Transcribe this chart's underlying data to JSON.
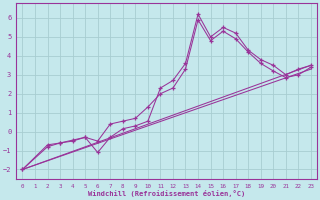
{
  "xlabel": "Windchill (Refroidissement éolien,°C)",
  "xlim": [
    -0.5,
    23.5
  ],
  "ylim": [
    -2.5,
    6.8
  ],
  "xticks": [
    0,
    1,
    2,
    3,
    4,
    5,
    6,
    7,
    8,
    9,
    10,
    11,
    12,
    13,
    14,
    15,
    16,
    17,
    18,
    19,
    20,
    21,
    22,
    23
  ],
  "yticks": [
    -2,
    -1,
    0,
    1,
    2,
    3,
    4,
    5,
    6
  ],
  "bg_color": "#c5e8ec",
  "line_color": "#993399",
  "grid_color": "#a8cdd1",
  "line1_x": [
    0,
    2,
    3,
    4,
    5,
    6,
    7,
    8,
    9,
    10,
    11,
    12,
    13,
    14,
    15,
    16,
    17,
    18,
    19,
    20,
    21,
    22,
    23
  ],
  "line1_y": [
    -2.0,
    -0.7,
    -0.6,
    -0.5,
    -0.3,
    -1.1,
    -0.3,
    0.15,
    0.3,
    0.55,
    2.3,
    2.7,
    3.6,
    6.2,
    5.0,
    5.5,
    5.2,
    4.3,
    3.8,
    3.5,
    3.0,
    3.3,
    3.5
  ],
  "line2_x": [
    0,
    23
  ],
  "line2_y": [
    -2.0,
    3.5
  ],
  "line3_x": [
    0,
    23
  ],
  "line3_y": [
    -2.0,
    3.5
  ],
  "line4_x": [
    0,
    2,
    3,
    4,
    5,
    6,
    7,
    8,
    9,
    10,
    11,
    12,
    13,
    14,
    15,
    16,
    17,
    18,
    19,
    20,
    21,
    22,
    23
  ],
  "line4_y": [
    -2.0,
    -0.8,
    -0.6,
    -0.45,
    -0.3,
    -0.5,
    0.4,
    0.55,
    0.7,
    1.3,
    2.0,
    2.3,
    3.3,
    5.9,
    4.8,
    5.3,
    4.9,
    4.2,
    3.6,
    3.2,
    2.85,
    3.0,
    3.4
  ]
}
